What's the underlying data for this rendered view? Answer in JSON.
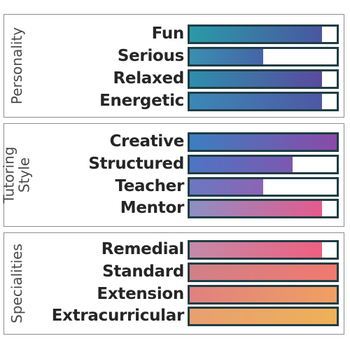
{
  "sections": [
    {
      "title_lines": [
        "Personality"
      ],
      "rows": [
        {
          "label": "Fun",
          "value": 0.9,
          "color_from": "#2a9aa8",
          "color_to": "#4a56a0"
        },
        {
          "label": "Serious",
          "value": 0.5,
          "color_from": "#3a8fb0",
          "color_to": "#4664a6"
        },
        {
          "label": "Relaxed",
          "value": 0.9,
          "color_from": "#2e8ead",
          "color_to": "#5a4a9e"
        },
        {
          "label": "Energetic",
          "value": 0.9,
          "color_from": "#3b88b6",
          "color_to": "#4e57a4"
        }
      ]
    },
    {
      "title_lines": [
        "Tutoring",
        "Style"
      ],
      "rows": [
        {
          "label": "Creative",
          "value": 1.0,
          "color_from": "#3b7fc0",
          "color_to": "#8a4aa8"
        },
        {
          "label": "Structured",
          "value": 0.7,
          "color_from": "#4d75c4",
          "color_to": "#7c58b0"
        },
        {
          "label": "Teacher",
          "value": 0.5,
          "color_from": "#6a78c0",
          "color_to": "#8c64b4"
        },
        {
          "label": "Mentor",
          "value": 0.9,
          "color_from": "#8d8fc4",
          "color_to": "#e65a8c"
        }
      ]
    },
    {
      "title_lines": [
        "Specialities"
      ],
      "rows": [
        {
          "label": "Remedial",
          "value": 0.9,
          "color_from": "#c48aa8",
          "color_to": "#ee6080"
        },
        {
          "label": "Standard",
          "value": 1.0,
          "color_from": "#d08088",
          "color_to": "#f07a6e"
        },
        {
          "label": "Extension",
          "value": 1.0,
          "color_from": "#e08080",
          "color_to": "#f0a062"
        },
        {
          "label": "Extracurricular",
          "value": 1.0,
          "color_from": "#e8a070",
          "color_to": "#f0b058"
        }
      ]
    }
  ]
}
